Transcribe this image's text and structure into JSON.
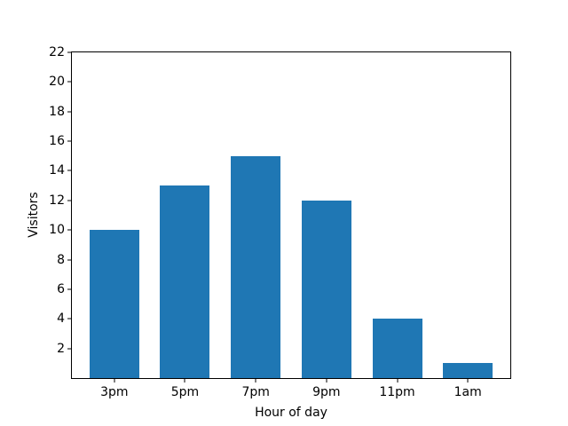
{
  "chart_data": {
    "type": "bar",
    "title": "",
    "xlabel": "Hour of day",
    "ylabel": "Visitors",
    "categories": [
      "3pm",
      "5pm",
      "7pm",
      "9pm",
      "11pm",
      "1am"
    ],
    "values": [
      10,
      13,
      15,
      12,
      4,
      1
    ],
    "ylim": [
      0,
      22
    ],
    "yticks": [
      2,
      4,
      6,
      8,
      10,
      12,
      14,
      16,
      18,
      20,
      22
    ],
    "xlim_units": [
      -0.6,
      5.6
    ],
    "bar_color": "#1f77b4",
    "grid": false,
    "legend": null,
    "background_color": "#ffffff",
    "spine_color": "#000000"
  }
}
